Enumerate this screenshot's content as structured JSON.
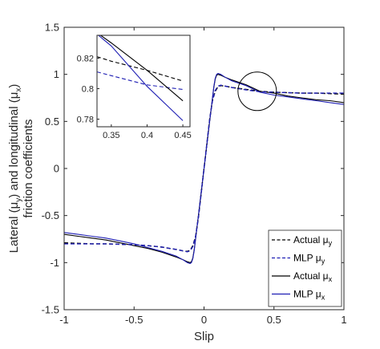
{
  "chart_data": {
    "type": "line",
    "xlabel": "Slip",
    "ylabel_parts": [
      "Lateral (",
      "μ",
      "y",
      ") and longitudinal (",
      "μ",
      "x",
      ")"
    ],
    "ylabel_line2": "friction coefficients",
    "xlim": [
      -1,
      1
    ],
    "ylim": [
      -1.5,
      1.5
    ],
    "xticks": [
      "-1",
      "-0.5",
      "0",
      "0.5",
      "1"
    ],
    "yticks": [
      "-1.5",
      "-1",
      "-0.5",
      "0",
      "0.5",
      "1",
      "1.5"
    ],
    "legend_position": "bottom-right",
    "colors": {
      "actual": "#000000",
      "mlp": "#1f1fb4"
    },
    "series": [
      {
        "name_main": "Actual μ",
        "name_sub": "y",
        "dash": "dashed",
        "color": "#000000",
        "x": [
          -1,
          -0.9,
          -0.8,
          -0.7,
          -0.6,
          -0.5,
          -0.4,
          -0.3,
          -0.2,
          -0.15,
          -0.12,
          -0.1,
          -0.08,
          -0.06,
          -0.04,
          -0.02,
          0,
          0.02,
          0.04,
          0.06,
          0.08,
          0.1,
          0.12,
          0.15,
          0.2,
          0.3,
          0.4,
          0.5,
          0.6,
          0.7,
          0.8,
          0.9,
          1
        ],
        "y": [
          -0.79,
          -0.795,
          -0.8,
          -0.8,
          -0.805,
          -0.81,
          -0.82,
          -0.835,
          -0.86,
          -0.875,
          -0.88,
          -0.87,
          -0.82,
          -0.72,
          -0.52,
          -0.26,
          0,
          0.26,
          0.52,
          0.72,
          0.82,
          0.87,
          0.88,
          0.875,
          0.86,
          0.84,
          0.82,
          0.81,
          0.805,
          0.8,
          0.8,
          0.795,
          0.79
        ]
      },
      {
        "name_main": "MLP μ",
        "name_sub": "y",
        "dash": "dashed",
        "color": "#1f1fb4",
        "x": [
          -1,
          -0.9,
          -0.8,
          -0.7,
          -0.6,
          -0.5,
          -0.4,
          -0.3,
          -0.2,
          -0.15,
          -0.12,
          -0.1,
          -0.08,
          -0.06,
          -0.04,
          -0.02,
          0,
          0.02,
          0.04,
          0.06,
          0.08,
          0.1,
          0.12,
          0.15,
          0.2,
          0.3,
          0.4,
          0.5,
          0.6,
          0.7,
          0.8,
          0.9,
          1
        ],
        "y": [
          -0.8,
          -0.8,
          -0.8,
          -0.8,
          -0.805,
          -0.81,
          -0.82,
          -0.835,
          -0.86,
          -0.875,
          -0.885,
          -0.875,
          -0.83,
          -0.72,
          -0.52,
          -0.26,
          0,
          0.26,
          0.52,
          0.72,
          0.83,
          0.875,
          0.885,
          0.875,
          0.86,
          0.835,
          0.815,
          0.81,
          0.805,
          0.8,
          0.8,
          0.8,
          0.8
        ]
      },
      {
        "name_main": "Actual μ",
        "name_sub": "x",
        "dash": "solid",
        "color": "#000000",
        "x": [
          -1,
          -0.9,
          -0.8,
          -0.7,
          -0.6,
          -0.5,
          -0.4,
          -0.3,
          -0.2,
          -0.15,
          -0.12,
          -0.1,
          -0.09,
          -0.08,
          -0.07,
          -0.06,
          -0.04,
          -0.02,
          0,
          0.02,
          0.04,
          0.06,
          0.07,
          0.08,
          0.09,
          0.1,
          0.12,
          0.15,
          0.2,
          0.3,
          0.4,
          0.5,
          0.6,
          0.7,
          0.8,
          0.9,
          1
        ],
        "y": [
          -0.7,
          -0.72,
          -0.74,
          -0.76,
          -0.79,
          -0.82,
          -0.85,
          -0.89,
          -0.94,
          -0.97,
          -0.99,
          -1.0,
          -0.99,
          -0.95,
          -0.86,
          -0.74,
          -0.5,
          -0.25,
          0,
          0.25,
          0.5,
          0.74,
          0.86,
          0.95,
          0.99,
          1.0,
          0.99,
          0.97,
          0.94,
          0.89,
          0.82,
          0.8,
          0.77,
          0.75,
          0.73,
          0.72,
          0.7
        ]
      },
      {
        "name_main": "MLP μ",
        "name_sub": "x",
        "dash": "solid",
        "color": "#1f1fb4",
        "x": [
          -1,
          -0.9,
          -0.8,
          -0.7,
          -0.6,
          -0.5,
          -0.4,
          -0.3,
          -0.2,
          -0.15,
          -0.12,
          -0.1,
          -0.09,
          -0.08,
          -0.07,
          -0.06,
          -0.04,
          -0.02,
          0,
          0.02,
          0.04,
          0.06,
          0.07,
          0.08,
          0.09,
          0.1,
          0.12,
          0.15,
          0.2,
          0.3,
          0.4,
          0.5,
          0.6,
          0.7,
          0.8,
          0.9,
          1
        ],
        "y": [
          -0.68,
          -0.7,
          -0.72,
          -0.74,
          -0.77,
          -0.8,
          -0.84,
          -0.88,
          -0.93,
          -0.97,
          -1.0,
          -1.01,
          -1.0,
          -0.96,
          -0.87,
          -0.75,
          -0.5,
          -0.25,
          0,
          0.25,
          0.5,
          0.75,
          0.87,
          0.96,
          1.0,
          1.01,
          1.0,
          0.97,
          0.93,
          0.88,
          0.81,
          0.78,
          0.76,
          0.74,
          0.72,
          0.7,
          0.68
        ]
      }
    ],
    "inset": {
      "xlim": [
        0.33,
        0.46
      ],
      "ylim": [
        0.775,
        0.835
      ],
      "xticks": [
        "0.35",
        "0.4",
        "0.45"
      ],
      "yticks": [
        "0.78",
        "0.8",
        "0.82"
      ],
      "lines": [
        {
          "series": 0,
          "x": [
            0.33,
            0.35,
            0.4,
            0.45
          ],
          "y": [
            0.821,
            0.818,
            0.812,
            0.805
          ]
        },
        {
          "series": 1,
          "x": [
            0.33,
            0.35,
            0.4,
            0.45
          ],
          "y": [
            0.811,
            0.8085,
            0.8025,
            0.7995
          ]
        },
        {
          "series": 2,
          "x": [
            0.335,
            0.35,
            0.4,
            0.45
          ],
          "y": [
            0.835,
            0.83,
            0.812,
            0.792
          ]
        },
        {
          "series": 3,
          "x": [
            0.332,
            0.35,
            0.4,
            0.45
          ],
          "y": [
            0.835,
            0.828,
            0.8015,
            0.779
          ]
        }
      ]
    },
    "highlight": {
      "shape": "circle",
      "cx": 0.38,
      "cy": 0.82
    }
  }
}
